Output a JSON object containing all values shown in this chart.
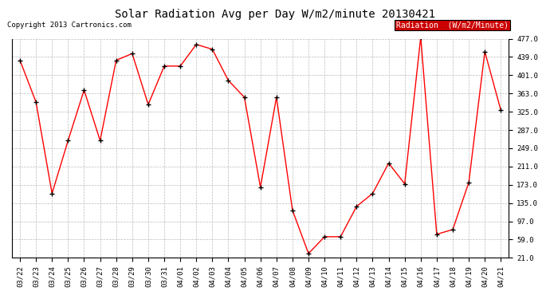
{
  "title": "Solar Radiation Avg per Day W/m2/minute 20130421",
  "copyright": "Copyright 2013 Cartronics.com",
  "legend_label": "Radiation  (W/m2/Minute)",
  "dates": [
    "03/22",
    "03/23",
    "03/24",
    "03/25",
    "03/26",
    "03/27",
    "03/28",
    "03/29",
    "03/30",
    "03/31",
    "04/01",
    "04/02",
    "04/03",
    "04/04",
    "04/05",
    "04/06",
    "04/07",
    "04/08",
    "04/09",
    "04/10",
    "04/11",
    "04/12",
    "04/13",
    "04/14",
    "04/15",
    "04/16",
    "04/17",
    "04/18",
    "04/19",
    "04/20",
    "04/21"
  ],
  "values": [
    432,
    345,
    155,
    265,
    370,
    265,
    432,
    446,
    340,
    420,
    420,
    465,
    455,
    390,
    355,
    168,
    355,
    120,
    30,
    65,
    65,
    128,
    155,
    218,
    175,
    480,
    70,
    80,
    178,
    450,
    328
  ],
  "line_color": "red",
  "marker_color": "black",
  "marker_size": 5,
  "background_color": "#ffffff",
  "plot_bg_color": "#ffffff",
  "grid_color": "#aaaaaa",
  "ylim": [
    21.0,
    477.0
  ],
  "yticks": [
    21.0,
    59.0,
    97.0,
    135.0,
    173.0,
    211.0,
    249.0,
    287.0,
    325.0,
    363.0,
    401.0,
    439.0,
    477.0
  ],
  "legend_bg": "#cc0000",
  "legend_text_color": "#ffffff",
  "title_fontsize": 10,
  "copyright_fontsize": 6.5,
  "tick_fontsize": 6.5,
  "legend_fontsize": 7
}
